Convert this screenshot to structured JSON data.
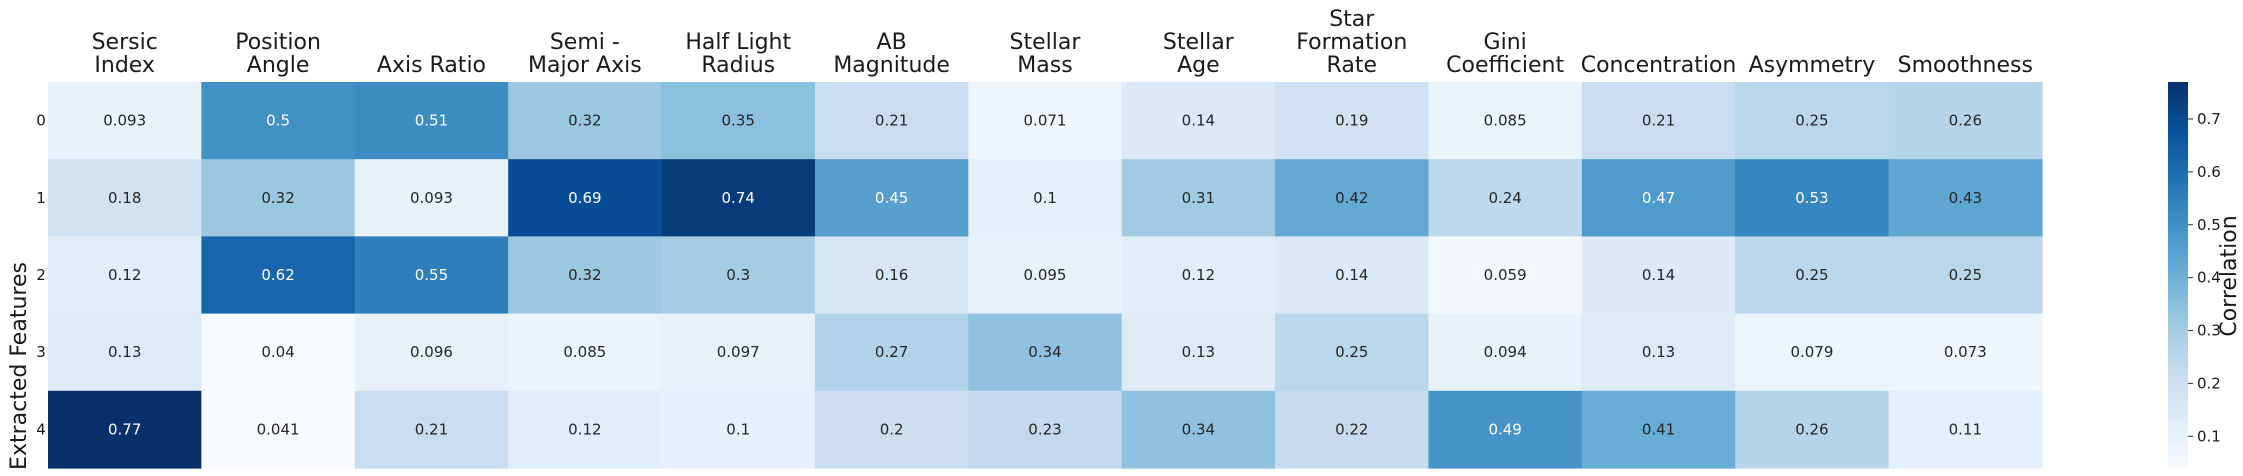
{
  "chart_data": {
    "type": "heatmap",
    "ylabel": "Extracted Features",
    "columns": [
      [
        "Sersic",
        "Index"
      ],
      [
        "Position",
        "Angle"
      ],
      [
        "Axis Ratio"
      ],
      [
        "Semi -",
        "Major Axis"
      ],
      [
        "Half Light",
        "Radius"
      ],
      [
        "AB",
        "Magnitude"
      ],
      [
        "Stellar",
        "Mass"
      ],
      [
        "Stellar",
        "Age"
      ],
      [
        "Star",
        "Formation",
        "Rate"
      ],
      [
        "Gini",
        "Coefficient"
      ],
      [
        "Concentration"
      ],
      [
        "Asymmetry"
      ],
      [
        "Smoothness"
      ]
    ],
    "rows": [
      "0",
      "1",
      "2",
      "3",
      "4"
    ],
    "values": [
      [
        "0.093",
        "0.5",
        "0.51",
        "0.32",
        "0.35",
        "0.21",
        "0.071",
        "0.14",
        "0.19",
        "0.085",
        "0.21",
        "0.25",
        "0.26"
      ],
      [
        "0.18",
        "0.32",
        "0.093",
        "0.69",
        "0.74",
        "0.45",
        "0.1",
        "0.31",
        "0.42",
        "0.24",
        "0.47",
        "0.53",
        "0.43"
      ],
      [
        "0.12",
        "0.62",
        "0.55",
        "0.32",
        "0.3",
        "0.16",
        "0.095",
        "0.12",
        "0.14",
        "0.059",
        "0.14",
        "0.25",
        "0.25"
      ],
      [
        "0.13",
        "0.04",
        "0.096",
        "0.085",
        "0.097",
        "0.27",
        "0.34",
        "0.13",
        "0.25",
        "0.094",
        "0.13",
        "0.079",
        "0.073"
      ],
      [
        "0.77",
        "0.041",
        "0.21",
        "0.12",
        "0.1",
        "0.2",
        "0.23",
        "0.34",
        "0.22",
        "0.49",
        "0.41",
        "0.26",
        "0.11"
      ]
    ],
    "colorbar": {
      "label": "Correlation",
      "ticks": [
        "0.1",
        "0.2",
        "0.3",
        "0.4",
        "0.5",
        "0.6",
        "0.7"
      ],
      "range": [
        0.04,
        0.77
      ],
      "colormap": "Blues"
    }
  }
}
